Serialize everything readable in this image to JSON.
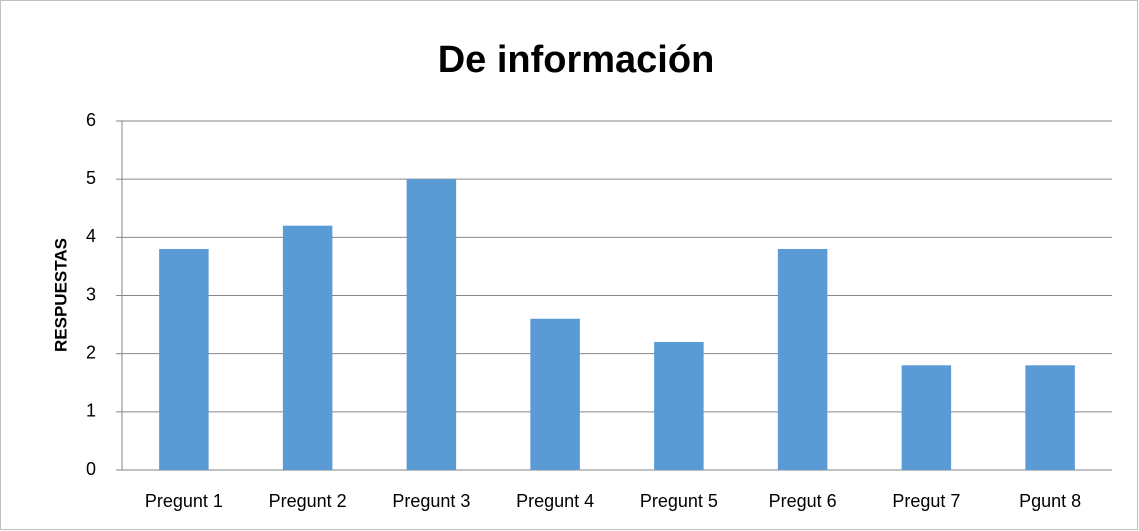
{
  "chart_data": {
    "type": "bar",
    "title": "De información",
    "y_label": "RESPUESTAS",
    "categories": [
      "Pregunt 1",
      "Pregunt 2",
      "Pregunt 3",
      "Pregunt 4",
      "Pregunt 5",
      "Pregut 6",
      "Pregut 7",
      "Pgunt 8"
    ],
    "values": [
      3.8,
      4.2,
      5,
      2.6,
      2.2,
      3.8,
      1.8,
      1.8
    ],
    "color": "#5b9bd5",
    "ylim": [
      0,
      6
    ],
    "yticks": [
      0,
      1,
      2,
      3,
      4,
      5,
      6
    ],
    "grid": true
  }
}
